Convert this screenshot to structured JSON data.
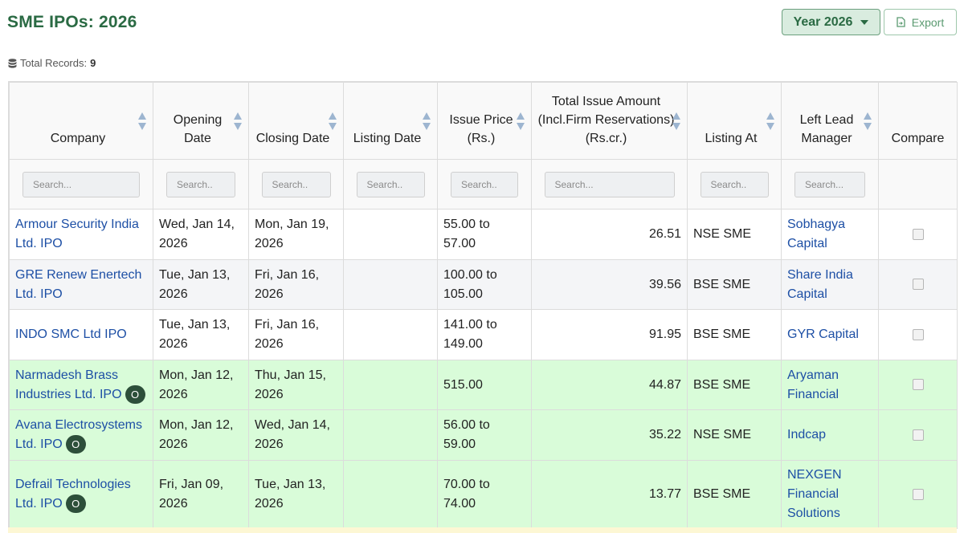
{
  "page": {
    "title": "SME IPOs: 2026"
  },
  "toolbar": {
    "year_label": "Year 2026",
    "export_label": "Export"
  },
  "records": {
    "label": "Total Records:",
    "count": "9"
  },
  "table": {
    "headers": {
      "company": "Company",
      "opening_date": "Opening Date",
      "closing_date": "Closing Date",
      "listing_date": "Listing Date",
      "issue_price": "Issue Price (Rs.)",
      "issue_amount": "Total Issue Amount (Incl.Firm Reservations) (Rs.cr.)",
      "listing_at": "Listing At",
      "lead_manager": "Left Lead Manager",
      "compare": "Compare"
    },
    "search_placeholders": {
      "company": "Search...",
      "opening_date": "Search..",
      "closing_date": "Search..",
      "listing_date": "Search..",
      "issue_price": "Search..",
      "issue_amount": "Search...",
      "listing_at": "Search..",
      "lead_manager": "Search..."
    },
    "rows": [
      {
        "company": "Armour Security India Ltd. IPO",
        "badge": "",
        "opening": "Wed, Jan 14, 2026",
        "closing": "Mon, Jan 19, 2026",
        "listing": "",
        "price": "55.00 to 57.00",
        "amount": "26.51",
        "listing_at": "NSE SME",
        "manager": "Sobhagya Capital"
      },
      {
        "company": "GRE Renew Enertech Ltd. IPO",
        "badge": "",
        "opening": "Tue, Jan 13, 2026",
        "closing": "Fri, Jan 16, 2026",
        "listing": "",
        "price": "100.00 to 105.00",
        "amount": "39.56",
        "listing_at": "BSE SME",
        "manager": "Share India Capital"
      },
      {
        "company": "INDO SMC Ltd IPO",
        "badge": "",
        "opening": "Tue, Jan 13, 2026",
        "closing": "Fri, Jan 16, 2026",
        "listing": "",
        "price": "141.00 to 149.00",
        "amount": "91.95",
        "listing_at": "BSE SME",
        "manager": "GYR Capital"
      },
      {
        "company": "Narmadesh Brass Industries Ltd. IPO",
        "badge": "O",
        "opening": "Mon, Jan 12, 2026",
        "closing": "Thu, Jan 15, 2026",
        "listing": "",
        "price": "515.00",
        "amount": "44.87",
        "listing_at": "BSE SME",
        "manager": "Aryaman Financial"
      },
      {
        "company": "Avana Electrosystems Ltd. IPO",
        "badge": "O",
        "opening": "Mon, Jan 12, 2026",
        "closing": "Wed, Jan 14, 2026",
        "listing": "",
        "price": "56.00 to 59.00",
        "amount": "35.22",
        "listing_at": "NSE SME",
        "manager": "Indcap"
      },
      {
        "company": "Defrail Technologies Ltd. IPO",
        "badge": "O",
        "opening": "Fri, Jan 09, 2026",
        "closing": "Tue, Jan 13, 2026",
        "listing": "",
        "price": "70.00 to 74.00",
        "amount": "13.77",
        "listing_at": "BSE SME",
        "manager": "NEXGEN Financial Solutions"
      }
    ]
  },
  "colors": {
    "title": "#2a6a43",
    "link": "#1d4fa5",
    "open_row": "#d9fcd9",
    "badge": "#2d4f3a"
  }
}
